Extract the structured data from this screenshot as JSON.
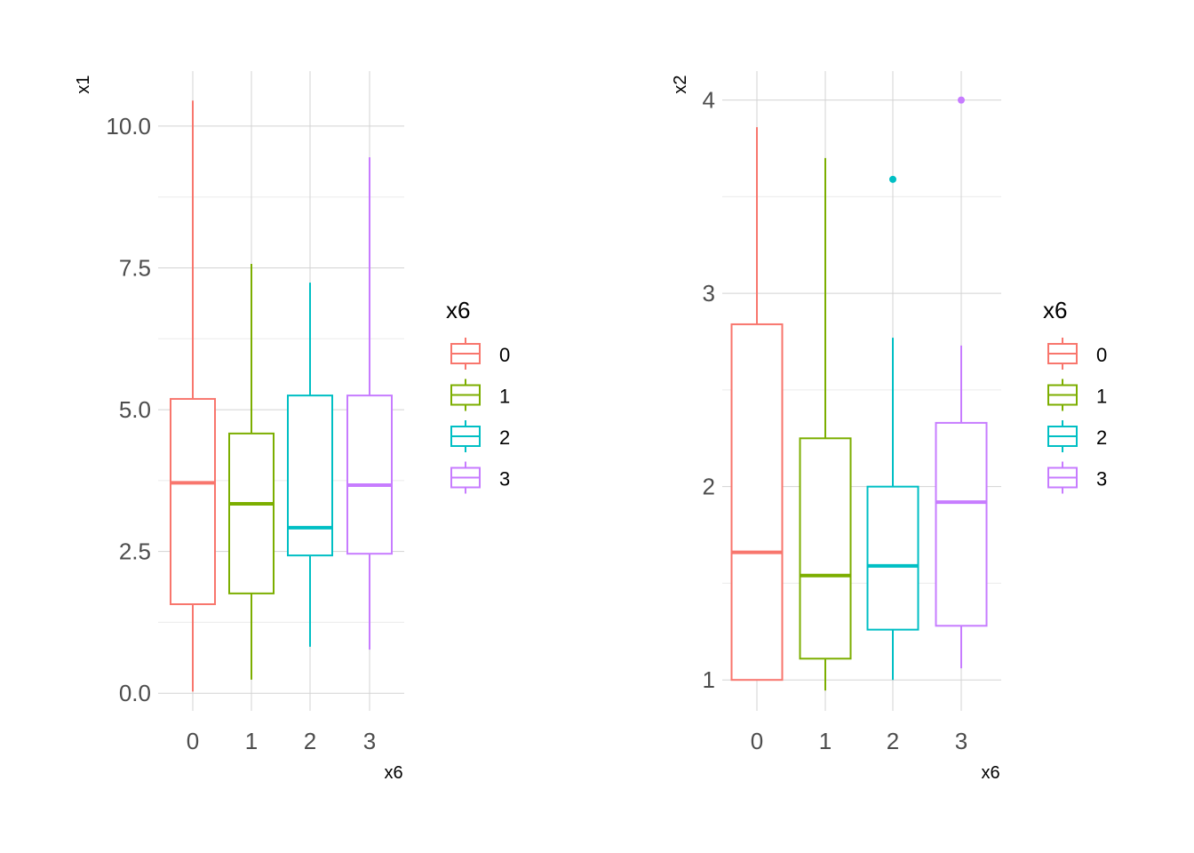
{
  "chart_data": [
    {
      "type": "boxplot",
      "xlabel": "x6",
      "ylabel": "x1",
      "ylim": [
        -0.31,
        10.97
      ],
      "yticks": [
        0,
        2.5,
        5,
        7.5,
        10
      ],
      "ytick_labels": [
        "0.0",
        "2.5",
        "5.0",
        "7.5",
        "10.0"
      ],
      "categories": [
        "0",
        "1",
        "2",
        "3"
      ],
      "boxes": [
        {
          "min": 0.03,
          "q1": 1.57,
          "median": 3.71,
          "q3": 5.19,
          "max": 10.45,
          "outliers": []
        },
        {
          "min": 0.24,
          "q1": 1.76,
          "median": 3.34,
          "q3": 4.58,
          "max": 7.57,
          "outliers": []
        },
        {
          "min": 0.82,
          "q1": 2.43,
          "median": 2.92,
          "q3": 5.25,
          "max": 7.24,
          "outliers": []
        },
        {
          "min": 0.77,
          "q1": 2.46,
          "median": 3.67,
          "q3": 5.25,
          "max": 9.45,
          "outliers": []
        }
      ],
      "legend": {
        "title": "x6",
        "entries": [
          "0",
          "1",
          "2",
          "3"
        ],
        "placement": "right"
      }
    },
    {
      "type": "boxplot",
      "xlabel": "x6",
      "ylabel": "x2",
      "ylim": [
        0.84,
        4.15
      ],
      "yticks": [
        1,
        2,
        3,
        4
      ],
      "ytick_labels": [
        "1",
        "2",
        "3",
        "4"
      ],
      "categories": [
        "0",
        "1",
        "2",
        "3"
      ],
      "boxes": [
        {
          "min": 1.0,
          "q1": 1.0,
          "median": 1.66,
          "q3": 2.84,
          "max": 3.86,
          "outliers": []
        },
        {
          "min": 0.945,
          "q1": 1.11,
          "median": 1.54,
          "q3": 2.25,
          "max": 3.7,
          "outliers": []
        },
        {
          "min": 1.0,
          "q1": 1.26,
          "median": 1.59,
          "q3": 2.0,
          "max": 2.77,
          "outliers": [
            3.59
          ]
        },
        {
          "min": 1.06,
          "q1": 1.28,
          "median": 1.92,
          "q3": 2.33,
          "max": 2.73,
          "outliers": [
            4.0
          ]
        }
      ],
      "legend": {
        "title": "x6",
        "entries": [
          "0",
          "1",
          "2",
          "3"
        ],
        "placement": "right"
      }
    }
  ],
  "colors": [
    "#F8766D",
    "#7CAE00",
    "#00BFC4",
    "#C77CFF"
  ]
}
